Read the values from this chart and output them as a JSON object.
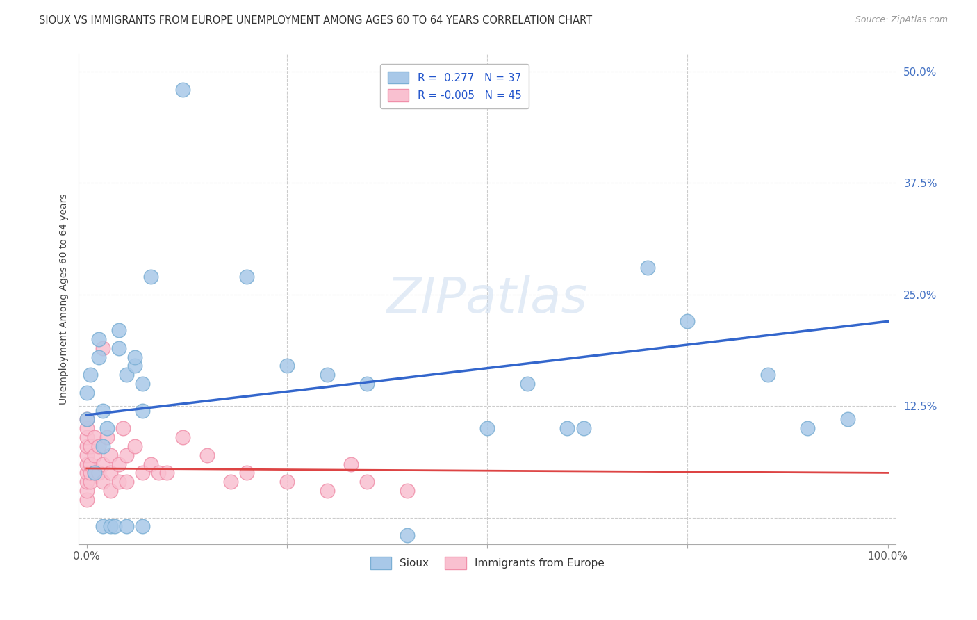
{
  "title": "SIOUX VS IMMIGRANTS FROM EUROPE UNEMPLOYMENT AMONG AGES 60 TO 64 YEARS CORRELATION CHART",
  "source": "Source: ZipAtlas.com",
  "ylabel": "Unemployment Among Ages 60 to 64 years",
  "background_color": "#ffffff",
  "watermark": "ZIPatlas",
  "sioux_color": "#a8c8e8",
  "sioux_edge_color": "#7bafd4",
  "immigrants_color": "#f9c0d0",
  "immigrants_edge_color": "#f090aa",
  "blue_line_color": "#3366cc",
  "red_line_color": "#dd4444",
  "tick_color": "#4472c4",
  "grid_color": "#cccccc",
  "xlim": [
    -1,
    101
  ],
  "ylim": [
    -3,
    52
  ],
  "yticks": [
    0,
    12.5,
    25.0,
    37.5,
    50.0
  ],
  "xticks": [
    0,
    25,
    50,
    75,
    100
  ],
  "xticklabels": [
    "0.0%",
    "",
    "",
    "",
    "100.0%"
  ],
  "yticklabels_right": [
    "",
    "12.5%",
    "25.0%",
    "37.5%",
    "50.0%"
  ],
  "legend_r_sioux": "R =  0.277",
  "legend_n_sioux": "N = 37",
  "legend_r_immigrants": "R = -0.005",
  "legend_n_immigrants": "N = 45",
  "sioux_x": [
    0,
    0,
    0.5,
    1,
    1.5,
    1.5,
    2,
    2,
    2,
    2.5,
    3,
    3.5,
    4,
    4,
    5,
    5,
    6,
    6,
    7,
    7,
    7,
    8,
    12,
    20,
    35,
    50,
    55,
    62,
    70,
    75,
    85,
    90,
    95,
    25,
    30,
    40,
    60
  ],
  "sioux_y": [
    11,
    14,
    16,
    5,
    18,
    20,
    8,
    12,
    -1,
    10,
    -1,
    -1,
    19,
    21,
    16,
    -1,
    17,
    18,
    15,
    12,
    -1,
    27,
    48,
    27,
    15,
    10,
    15,
    10,
    28,
    22,
    16,
    10,
    11,
    17,
    16,
    -2,
    10
  ],
  "immigrants_x": [
    0,
    0,
    0,
    0,
    0,
    0,
    0,
    0,
    0,
    0,
    0.5,
    0.5,
    0.5,
    0.5,
    1,
    1,
    1,
    1.5,
    1.5,
    2,
    2,
    2,
    2.5,
    3,
    3,
    3,
    4,
    4,
    4.5,
    5,
    5,
    6,
    7,
    8,
    9,
    10,
    12,
    15,
    18,
    20,
    25,
    30,
    33,
    35,
    40
  ],
  "immigrants_y": [
    2,
    3,
    4,
    5,
    6,
    7,
    8,
    9,
    10,
    11,
    4,
    5,
    6,
    8,
    5,
    7,
    9,
    5,
    8,
    4,
    6,
    19,
    9,
    3,
    5,
    7,
    4,
    6,
    10,
    4,
    7,
    8,
    5,
    6,
    5,
    5,
    9,
    7,
    4,
    5,
    4,
    3,
    6,
    4,
    3
  ],
  "blue_line_x": [
    0,
    100
  ],
  "blue_line_y": [
    11.5,
    22.0
  ],
  "red_line_x": [
    0,
    100
  ],
  "red_line_y": [
    5.5,
    5.0
  ]
}
